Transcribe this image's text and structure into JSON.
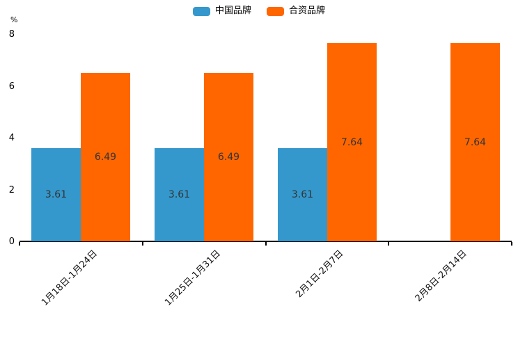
{
  "legend": {
    "items": [
      {
        "label": "中国品牌",
        "color": "#3498cd"
      },
      {
        "label": "合资品牌",
        "color": "#ff6600"
      }
    ]
  },
  "chart_data": {
    "type": "bar",
    "categories": [
      "1月18日-1月24日",
      "1月25日-1月31日",
      "2月1日-2月7日",
      "2月8日-2月14日"
    ],
    "series": [
      {
        "name": "中国品牌",
        "color": "#3498cd",
        "values": [
          3.61,
          3.61,
          3.61,
          null
        ]
      },
      {
        "name": "合资品牌",
        "color": "#ff6600",
        "values": [
          6.49,
          6.49,
          7.64,
          7.64
        ]
      }
    ],
    "title": "",
    "xlabel": "",
    "ylabel": "%",
    "ylim": [
      0,
      8
    ],
    "yticks": [
      0,
      2,
      4,
      6,
      8
    ],
    "grid": false,
    "legend_position": "top-center",
    "value_label_position": "inside-center",
    "x_label_rotation": 45
  },
  "colors": {
    "background": "#ffffff",
    "axis": "#000000",
    "value_label": "#333333",
    "tick_label": "#000000"
  }
}
